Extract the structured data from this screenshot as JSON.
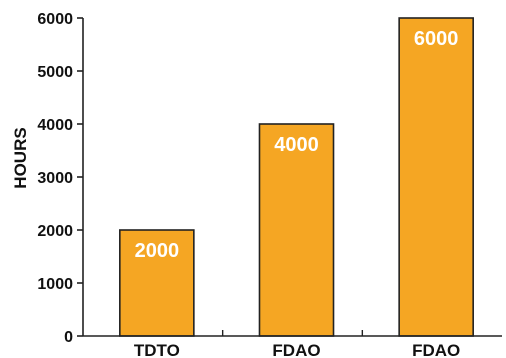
{
  "chart_data": {
    "type": "bar",
    "title": "",
    "xlabel": "",
    "ylabel": "HOURS",
    "categories": [
      "TDTO",
      "FDAO",
      "FDAO"
    ],
    "values": [
      2000,
      4000,
      6000
    ],
    "data_labels": [
      "2000",
      "4000",
      "6000"
    ],
    "ylim": [
      0,
      6000
    ],
    "yticks": [
      0,
      1000,
      2000,
      3000,
      4000,
      5000,
      6000
    ],
    "ytick_labels": [
      "0",
      "1000",
      "2000",
      "3000",
      "4000",
      "5000",
      "6000"
    ],
    "grid": false,
    "legend": "none",
    "colors": {
      "bar_fill": "#f5a623",
      "bar_stroke": "#222222",
      "axis": "#222222",
      "data_label": "#ffffff"
    }
  }
}
